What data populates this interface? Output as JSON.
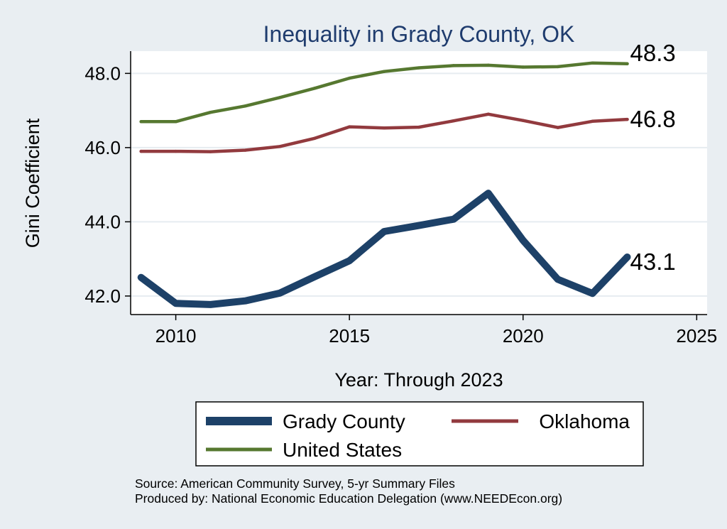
{
  "chart_data": {
    "type": "line",
    "title": "Inequality in Grady County, OK",
    "xlabel": "Year: Through 2023",
    "ylabel": "Gini Coefficient",
    "x": [
      2009,
      2010,
      2011,
      2012,
      2013,
      2014,
      2015,
      2016,
      2017,
      2018,
      2019,
      2020,
      2021,
      2022,
      2023
    ],
    "xlim": [
      2008.7,
      2025.3
    ],
    "ylim": [
      41.5,
      48.6
    ],
    "xticks": [
      2010,
      2015,
      2020,
      2025
    ],
    "xtick_labels": [
      "2010",
      "2015",
      "2020",
      "2025"
    ],
    "yticks": [
      42,
      44,
      46,
      48
    ],
    "ytick_labels": [
      "42.0",
      "44.0",
      "46.0",
      "48.0"
    ],
    "grid": true,
    "legend_position": "bottom",
    "series": [
      {
        "name": "Grady County",
        "color": "#1d4168",
        "values": [
          42.5,
          41.8,
          41.77,
          41.87,
          42.08,
          42.52,
          42.95,
          43.74,
          43.9,
          44.07,
          44.77,
          43.5,
          42.45,
          42.07,
          43.05
        ],
        "end_label": "43.1"
      },
      {
        "name": "Oklahoma",
        "color": "#923a3e",
        "values": [
          45.9,
          45.9,
          45.89,
          45.93,
          46.03,
          46.25,
          46.56,
          46.53,
          46.55,
          46.72,
          46.9,
          46.73,
          46.54,
          46.71,
          46.76
        ],
        "end_label": "46.8"
      },
      {
        "name": "United States",
        "color": "#567830",
        "values": [
          46.7,
          46.7,
          46.95,
          47.12,
          47.35,
          47.6,
          47.87,
          48.05,
          48.15,
          48.21,
          48.22,
          48.17,
          48.18,
          48.28,
          48.26
        ],
        "end_label": "48.3"
      }
    ],
    "source_lines": [
      "Source: American Community Survey, 5-yr Summary Files",
      "Produced by: National Economic Education Delegation (www.NEEDEcon.org)"
    ]
  }
}
